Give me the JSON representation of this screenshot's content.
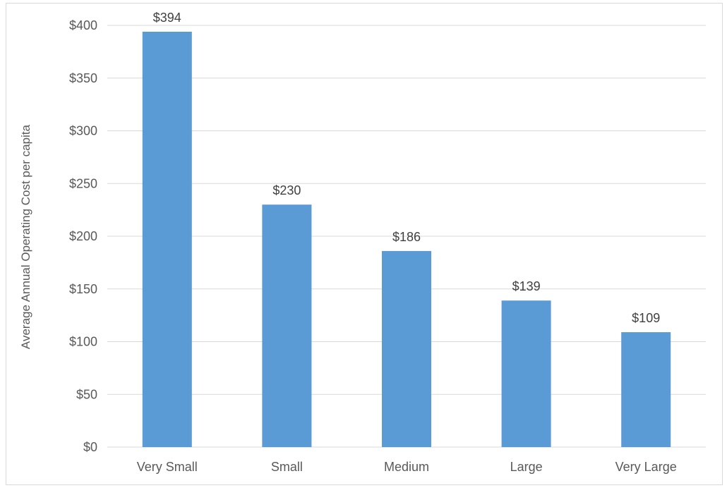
{
  "chart_data": {
    "type": "bar",
    "title": "",
    "xlabel": "",
    "ylabel": "Average Annual Operating Cost per capita",
    "categories": [
      "Very Small",
      "Small",
      "Medium",
      "Large",
      "Very Large"
    ],
    "values": [
      394,
      230,
      186,
      139,
      109
    ],
    "data_labels": [
      "$394",
      "$230",
      "$186",
      "$139",
      "$109"
    ],
    "yticks": [
      0,
      50,
      100,
      150,
      200,
      250,
      300,
      350,
      400
    ],
    "ytick_labels": [
      "$0",
      "$50",
      "$100",
      "$150",
      "$200",
      "$250",
      "$300",
      "$350",
      "$400"
    ],
    "ylim": [
      0,
      400
    ],
    "grid": true,
    "legend": "none",
    "bar_color": "#5b9bd5",
    "gridline_color": "#d9d9d9"
  }
}
